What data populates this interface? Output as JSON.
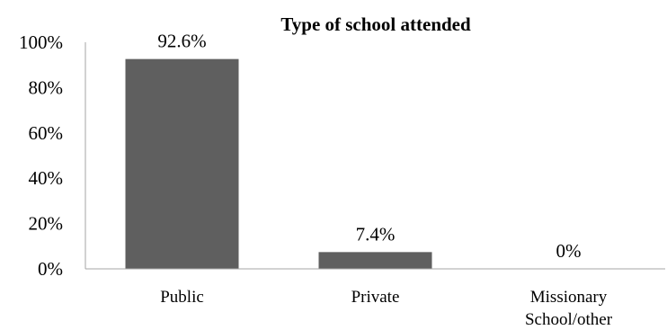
{
  "chart_data": {
    "type": "bar",
    "title": "Type of school attended",
    "xlabel": "",
    "ylabel": "",
    "categories": [
      [
        "Public"
      ],
      [
        "Private"
      ],
      [
        "Missionary",
        "School/other"
      ]
    ],
    "values": [
      92.6,
      7.4,
      0
    ],
    "data_labels": [
      "92.6%",
      "7.4%",
      "0%"
    ],
    "ylim": [
      0,
      100
    ],
    "yticks": [
      0,
      20,
      40,
      60,
      80,
      100
    ],
    "ytick_labels": [
      "0%",
      "20%",
      "40%",
      "60%",
      "80%",
      "100%"
    ],
    "grid": false,
    "legend": "none",
    "bar_color": "#5f5f5f",
    "axis_color": "#a6a6a6"
  }
}
